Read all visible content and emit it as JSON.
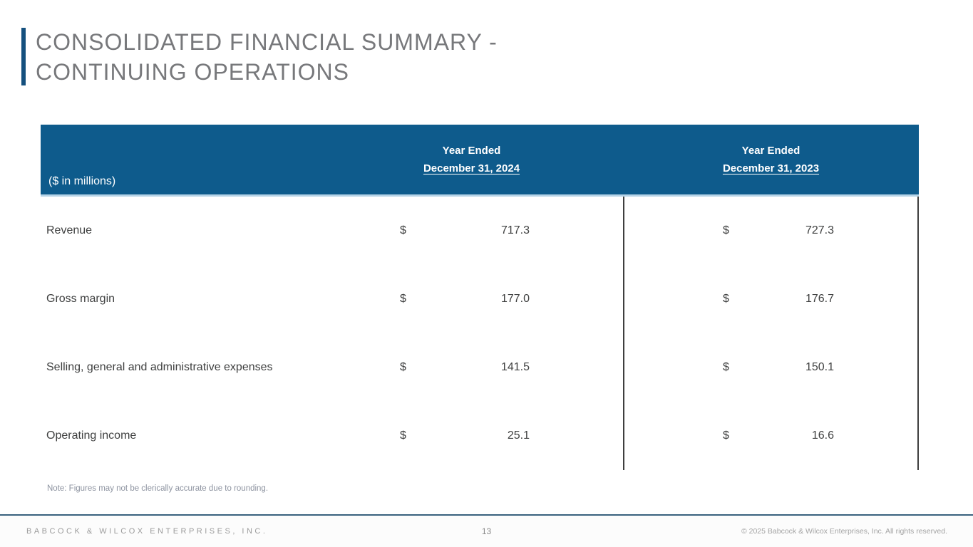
{
  "slide": {
    "title_line1": "CONSOLIDATED FINANCIAL SUMMARY -",
    "title_line2": "CONTINUING OPERATIONS"
  },
  "table": {
    "unit_label": "($ in millions)",
    "columns": [
      {
        "line1": "Year Ended",
        "line2": "December 31, 2024"
      },
      {
        "line1": "Year Ended",
        "line2": "December 31, 2023"
      }
    ],
    "rows": [
      {
        "label": "Revenue",
        "currency": "$",
        "fy2024": "717.3",
        "fy2023": "727.3"
      },
      {
        "label": "Gross margin",
        "currency": "$",
        "fy2024": "177.0",
        "fy2023": "176.7"
      },
      {
        "label": "Selling, general and administrative expenses",
        "currency": "$",
        "fy2024": "141.5",
        "fy2023": "150.1"
      },
      {
        "label": "Operating income",
        "currency": "$",
        "fy2024": "25.1",
        "fy2023": "16.6"
      }
    ]
  },
  "note": "Note: Figures may not be clerically accurate due to rounding.",
  "footer": {
    "company": "BABCOCK & WILCOX ENTERPRISES, INC.",
    "page_number": "13",
    "copyright": "© 2025 Babcock & Wilcox Enterprises, Inc. All rights reserved."
  },
  "colors": {
    "header_blue": "#0e5b8c",
    "accent_bar_blue": "#15507e",
    "header_underline_light_blue": "#b5d3e7",
    "title_gray": "#77787b",
    "body_text": "#3f4040",
    "column_border": "#3f3f3f",
    "note_gray": "#8d93a0",
    "footer_gray": "#9b9b9b"
  }
}
